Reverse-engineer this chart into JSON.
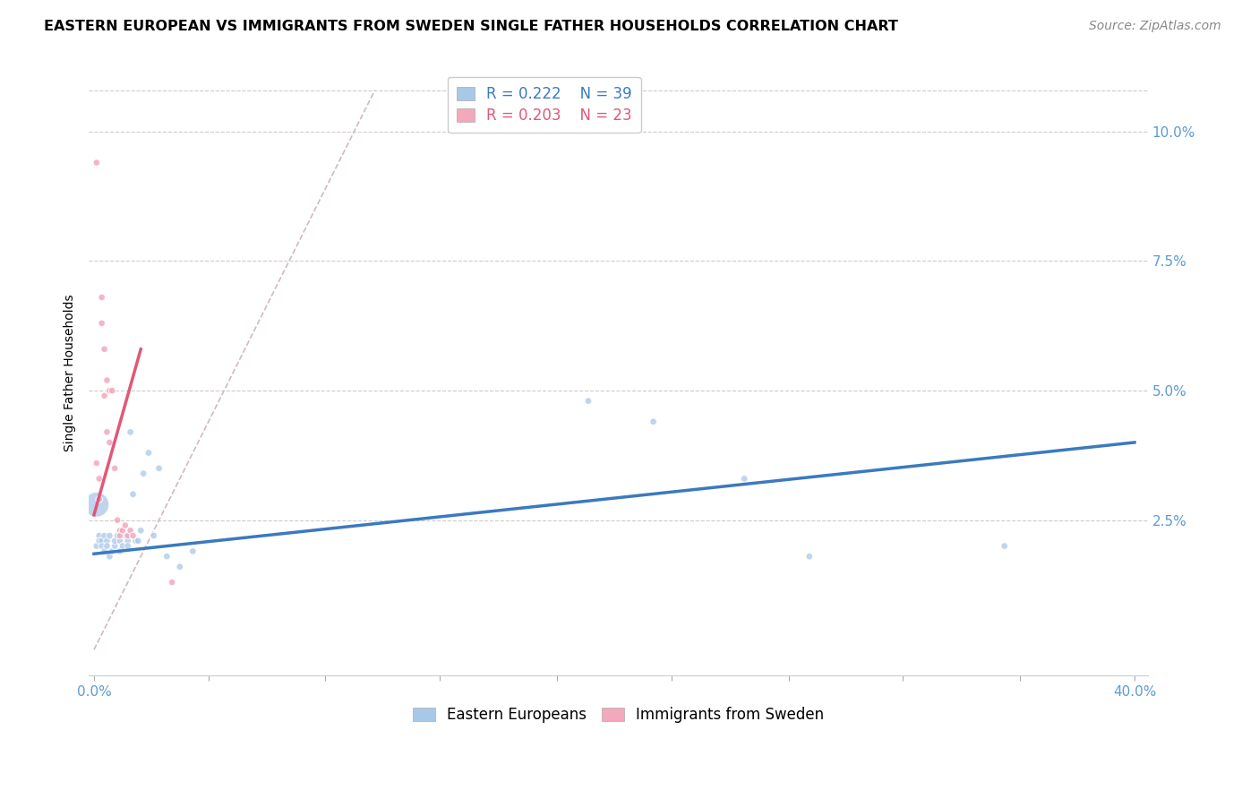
{
  "title": "EASTERN EUROPEAN VS IMMIGRANTS FROM SWEDEN SINGLE FATHER HOUSEHOLDS CORRELATION CHART",
  "source": "Source: ZipAtlas.com",
  "ylabel": "Single Father Households",
  "x_tick_labels": [
    "0.0%",
    "",
    "",
    "",
    "",
    "",
    "",
    "",
    "",
    "40.0%"
  ],
  "x_tick_positions": [
    0.0,
    0.044,
    0.089,
    0.133,
    0.178,
    0.222,
    0.267,
    0.311,
    0.356,
    0.4
  ],
  "y_tick_labels": [
    "2.5%",
    "5.0%",
    "7.5%",
    "10.0%"
  ],
  "y_tick_positions": [
    0.025,
    0.05,
    0.075,
    0.1
  ],
  "xlim": [
    -0.002,
    0.405
  ],
  "ylim": [
    -0.005,
    0.112
  ],
  "legend_labels": [
    "Eastern Europeans",
    "Immigrants from Sweden"
  ],
  "legend_r_values": [
    "R = 0.222",
    "R = 0.203"
  ],
  "legend_n_values": [
    "N = 39",
    "N = 23"
  ],
  "color_blue": "#a8c8e8",
  "color_pink": "#f4a8bc",
  "color_blue_line": "#3a7abf",
  "color_pink_line": "#e05878",
  "color_diag_line": "#d0b8c8",
  "blue_scatter_x": [
    0.001,
    0.002,
    0.002,
    0.003,
    0.003,
    0.004,
    0.004,
    0.005,
    0.005,
    0.006,
    0.006,
    0.007,
    0.008,
    0.008,
    0.009,
    0.01,
    0.01,
    0.011,
    0.012,
    0.013,
    0.013,
    0.014,
    0.015,
    0.016,
    0.017,
    0.018,
    0.019,
    0.021,
    0.023,
    0.025,
    0.028,
    0.033,
    0.038,
    0.19,
    0.215,
    0.25,
    0.275,
    0.35,
    0.001
  ],
  "blue_scatter_y": [
    0.02,
    0.022,
    0.021,
    0.021,
    0.02,
    0.022,
    0.019,
    0.021,
    0.02,
    0.022,
    0.018,
    0.019,
    0.02,
    0.021,
    0.022,
    0.021,
    0.019,
    0.02,
    0.022,
    0.021,
    0.02,
    0.042,
    0.03,
    0.021,
    0.021,
    0.023,
    0.034,
    0.038,
    0.022,
    0.035,
    0.018,
    0.016,
    0.019,
    0.048,
    0.044,
    0.033,
    0.018,
    0.02,
    0.028
  ],
  "blue_scatter_sizes": [
    30,
    30,
    30,
    30,
    30,
    30,
    30,
    30,
    30,
    30,
    30,
    30,
    30,
    30,
    30,
    30,
    30,
    30,
    30,
    30,
    30,
    30,
    30,
    30,
    30,
    30,
    30,
    30,
    30,
    30,
    30,
    30,
    30,
    30,
    30,
    30,
    30,
    30,
    400
  ],
  "pink_scatter_x": [
    0.001,
    0.001,
    0.002,
    0.002,
    0.003,
    0.003,
    0.004,
    0.004,
    0.005,
    0.005,
    0.006,
    0.006,
    0.007,
    0.008,
    0.009,
    0.01,
    0.01,
    0.011,
    0.012,
    0.013,
    0.014,
    0.015,
    0.03
  ],
  "pink_scatter_y": [
    0.094,
    0.036,
    0.033,
    0.029,
    0.068,
    0.063,
    0.058,
    0.049,
    0.052,
    0.042,
    0.04,
    0.05,
    0.05,
    0.035,
    0.025,
    0.023,
    0.022,
    0.023,
    0.024,
    0.022,
    0.023,
    0.022,
    0.013
  ],
  "pink_scatter_sizes": [
    30,
    30,
    30,
    30,
    30,
    30,
    30,
    30,
    30,
    30,
    30,
    30,
    30,
    30,
    30,
    30,
    30,
    30,
    30,
    30,
    30,
    30,
    30
  ],
  "blue_trend_x": [
    0.0,
    0.4
  ],
  "blue_trend_y": [
    0.0185,
    0.04
  ],
  "pink_trend_x": [
    0.0,
    0.018
  ],
  "pink_trend_y": [
    0.026,
    0.058
  ],
  "diag_line_x": [
    0.0,
    0.108
  ],
  "diag_line_y": [
    0.0,
    0.108
  ],
  "title_fontsize": 11.5,
  "source_fontsize": 10,
  "axis_label_fontsize": 10,
  "tick_fontsize": 11,
  "legend_fontsize": 12
}
